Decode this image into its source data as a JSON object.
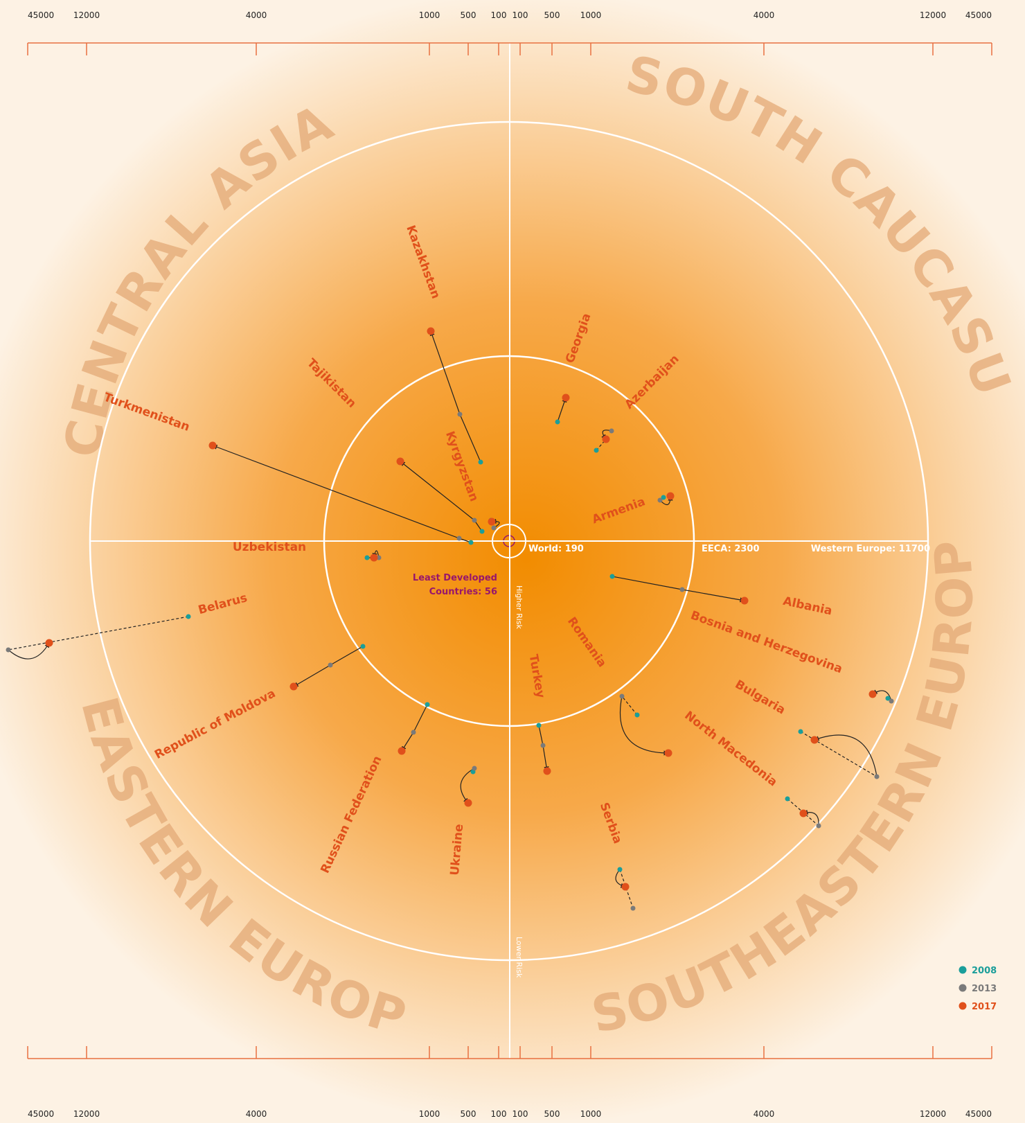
{
  "chart_data": {
    "type": "scatter",
    "scale": "log",
    "colors": {
      "2008": "#1b9e9a",
      "2013": "#7a7a7a",
      "2017": "#e0501b",
      "background_center": "#f28c00",
      "background_edge": "#fdf2e4",
      "ring": "#ffffff",
      "ldc": "#98166b"
    },
    "scale_ticks": [
      "45000",
      "12000",
      "4000",
      "1000",
      "500",
      "100"
    ],
    "regions": [
      "CENTRAL ASIA",
      "SOUTH CAUCASUS",
      "EASTERN EUROPE",
      "SOUTHEASTERN EUROPE"
    ],
    "reference_values": {
      "world": "World: 190",
      "eeca": "EECA: 2300",
      "western_europe": "Western Europe: 11700",
      "least_developed_1": "Least Developed",
      "least_developed_2": "Countries: 56"
    },
    "risk_labels": {
      "higher": "Higher Risk",
      "lower": "Lower Risk"
    },
    "legend": [
      {
        "year": "2008",
        "key": "2008"
      },
      {
        "year": "2013",
        "key": "2013"
      },
      {
        "year": "2017",
        "key": "2017"
      }
    ],
    "countries": [
      {
        "name": "Kazakhstan",
        "region": "CENTRAL ASIA",
        "points": [
          {
            "year": "2008",
            "label": "950"
          },
          {
            "year": "2013",
            "label": "1500"
          },
          {
            "year": "2017",
            "label": "3500"
          }
        ]
      },
      {
        "name": "Kyrgyzstan",
        "region": "CENTRAL ASIA",
        "points": [
          {
            "year": "2008",
            "label": "430"
          },
          {
            "year": "2013",
            "label": "530"
          },
          {
            "year": "2017",
            "label": "1400"
          }
        ]
      },
      {
        "name": "Tajikistan",
        "region": "CENTRAL ASIA",
        "points": [
          {
            "year": "2008",
            "label": "480"
          },
          {
            "year": "2013",
            "label": "390"
          },
          {
            "year": "2017",
            "label": "450"
          }
        ]
      },
      {
        "name": "Turkmenistan",
        "region": "CENTRAL ASIA",
        "points": [
          {
            "year": "2008",
            "label": "500"
          },
          {
            "year": "2013",
            "label": "640"
          },
          {
            "year": "2017",
            "label": "4400"
          }
        ]
      },
      {
        "name": "Uzbekistan",
        "region": "CENTRAL ASIA",
        "points": [
          {
            "year": "2008",
            "label": "1400"
          },
          {
            "year": "2013",
            "label": "1100"
          },
          {
            "year": "2017",
            "label": "1200"
          }
        ]
      },
      {
        "name": "Georgia",
        "region": "SOUTH CAUCASUS",
        "points": [
          {
            "year": "2008",
            "label": "1300"
          },
          {
            "year": "2017",
            "label": "1800"
          }
        ]
      },
      {
        "name": "Azerbaijan",
        "region": "SOUTH CAUCASUS",
        "points": [
          {
            "year": "2008",
            "label": "1200"
          },
          {
            "year": "2013",
            "label": "1800"
          },
          {
            "year": "2017",
            "label": "1700"
          }
        ]
      },
      {
        "name": "Armenia",
        "region": "SOUTH CAUCASUS",
        "points": [
          {
            "year": "2008",
            "label": "1800"
          },
          {
            "year": "2013",
            "label": "1900"
          },
          {
            "year": "2017",
            "label": "2000"
          }
        ]
      },
      {
        "name": "Albania",
        "region": "SOUTHEASTERN EUROPE",
        "points": [
          {
            "year": "2008",
            "label": "1700"
          },
          {
            "year": "2013",
            "label": "3800"
          },
          {
            "year": "2017",
            "label": "3800"
          }
        ]
      },
      {
        "name": "Bosnia and Herzegovina",
        "region": "SOUTHEASTERN EUROPE",
        "points": [
          {
            "year": "2008",
            "label": "9300"
          },
          {
            "year": "2013",
            "label": "9700"
          },
          {
            "year": "2017",
            "label": "8200"
          }
        ]
      },
      {
        "name": "Bulgaria",
        "region": "SOUTHEASTERN EUROPE",
        "points": [
          {
            "year": "2008",
            "label": "5800"
          },
          {
            "year": "2013",
            "label": "12000"
          },
          {
            "year": "2017",
            "label": "7000"
          }
        ]
      },
      {
        "name": "North Macedonia",
        "region": "SOUTHEASTERN EUROPE",
        "points": [
          {
            "year": "2008",
            "label": "7300"
          },
          {
            "year": "2013",
            "label": "10200"
          },
          {
            "year": "2017",
            "label": "9000"
          }
        ]
      },
      {
        "name": "Romania",
        "region": "SOUTHEASTERN EUROPE",
        "points": [
          {
            "year": "2008",
            "label": "2700"
          },
          {
            "year": "2013",
            "label": "2100"
          },
          {
            "year": "2017",
            "label": "3600"
          }
        ]
      },
      {
        "name": "Serbia",
        "region": "SOUTHEASTERN EUROPE",
        "points": [
          {
            "year": "2008",
            "label": "4500"
          },
          {
            "year": "2013",
            "label": "7500"
          },
          {
            "year": "2017",
            "label": "5800"
          }
        ]
      },
      {
        "name": "Turkey",
        "region": "SOUTHEASTERN EUROPE",
        "points": [
          {
            "year": "2008",
            "label": "1900"
          },
          {
            "year": "2013",
            "label": "2300"
          },
          {
            "year": "2017",
            "label": "2800"
          }
        ]
      },
      {
        "name": "Belarus",
        "region": "EASTERN EUROPE",
        "points": [
          {
            "year": "2008",
            "label": "5100"
          },
          {
            "year": "2013",
            "label": "45200"
          },
          {
            "year": "2017",
            "label": "23800"
          }
        ]
      },
      {
        "name": "Republic of Moldova",
        "region": "EASTERN EUROPE",
        "points": [
          {
            "year": "2008",
            "label": "2000"
          },
          {
            "year": "2013",
            "label": "2900"
          },
          {
            "year": "2017",
            "label": "3900"
          }
        ]
      },
      {
        "name": "Russian Federation",
        "region": "EASTERN EUROPE",
        "points": [
          {
            "year": "2008",
            "label": "1900"
          },
          {
            "year": "2013",
            "label": "2600"
          },
          {
            "year": "2017",
            "label": "3100"
          }
        ]
      },
      {
        "name": "Ukraine",
        "region": "EASTERN EUROPE",
        "points": [
          {
            "year": "2008",
            "label": "3000"
          },
          {
            "year": "2013",
            "label": "2900"
          },
          {
            "year": "2017",
            "label": "3700"
          }
        ]
      }
    ]
  }
}
